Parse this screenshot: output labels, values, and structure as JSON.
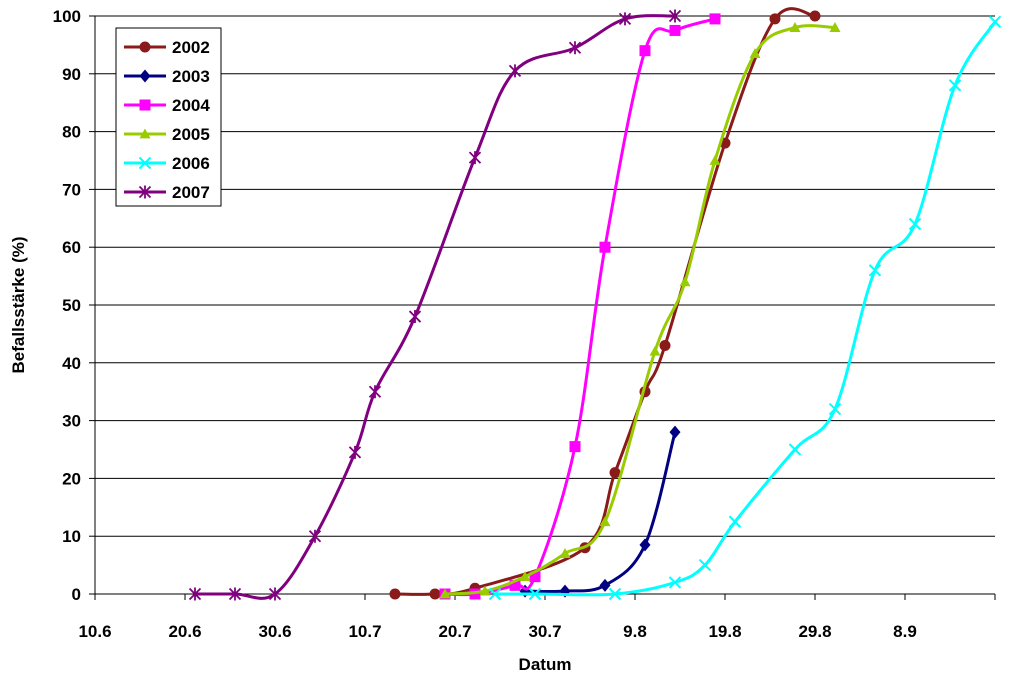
{
  "chart_data": {
    "type": "line",
    "title": "",
    "xlabel": "Datum",
    "ylabel": "Befallsstärke (%)",
    "x_tick_labels": [
      "10.6",
      "20.6",
      "30.6",
      "10.7",
      "20.7",
      "30.7",
      "9.8",
      "19.8",
      "29.8",
      "8.9"
    ],
    "x_unit": "days since 10.6",
    "xlim": [
      0,
      90
    ],
    "ylim": [
      0,
      100
    ],
    "y_ticks": [
      0,
      10,
      20,
      30,
      40,
      50,
      60,
      70,
      80,
      90,
      100
    ],
    "grid": "horizontal",
    "legend_position": "top-left",
    "series": [
      {
        "name": "2002",
        "color": "#8B1A1A",
        "marker": "circle",
        "x": [
          30.0,
          34.0,
          38.0,
          49.0,
          52.0,
          55.0,
          57.0,
          63.0,
          68.0,
          72.0
        ],
        "y": [
          0,
          0,
          1,
          8,
          21,
          35,
          43,
          78,
          99.5,
          100
        ]
      },
      {
        "name": "2003",
        "color": "#000080",
        "marker": "diamond",
        "x": [
          43.0,
          47.0,
          51.0,
          55.0,
          58.0
        ],
        "y": [
          0.5,
          0.5,
          1.5,
          8.5,
          28
        ]
      },
      {
        "name": "2004",
        "color": "#FF00FF",
        "marker": "square",
        "x": [
          35.0,
          38.0,
          42.0,
          44.0,
          48.0,
          51.0,
          55.0,
          58.0,
          62.0
        ],
        "y": [
          0,
          0,
          1.5,
          3,
          25.5,
          60,
          94,
          97.5,
          99.5
        ]
      },
      {
        "name": "2005",
        "color": "#99CC00",
        "marker": "triangle",
        "x": [
          35.0,
          39.0,
          43.0,
          47.0,
          51.0,
          56.0,
          59.0,
          62.0,
          66.0,
          70.0,
          74.0
        ],
        "y": [
          0,
          0.5,
          3,
          7,
          12.5,
          42,
          54,
          75,
          93.5,
          98,
          98
        ]
      },
      {
        "name": "2006",
        "color": "#00FFFF",
        "marker": "x",
        "x": [
          40.0,
          44.0,
          52.0,
          58.0,
          61.0,
          64.0,
          70.0,
          74.0,
          78.0,
          82.0,
          86.0,
          90.0
        ],
        "y": [
          0,
          0,
          0,
          2,
          5,
          12.5,
          25,
          32,
          56,
          64,
          88,
          99
        ]
      },
      {
        "name": "2007",
        "color": "#800080",
        "marker": "star",
        "x": [
          10.0,
          14.0,
          18.0,
          22.0,
          26.0,
          28.0,
          32.0,
          38.0,
          42.0,
          48.0,
          53.0,
          58.0
        ],
        "y": [
          0,
          0,
          0,
          10,
          24.5,
          35,
          48,
          75.5,
          90.5,
          94.5,
          99.5,
          100
        ]
      }
    ]
  }
}
